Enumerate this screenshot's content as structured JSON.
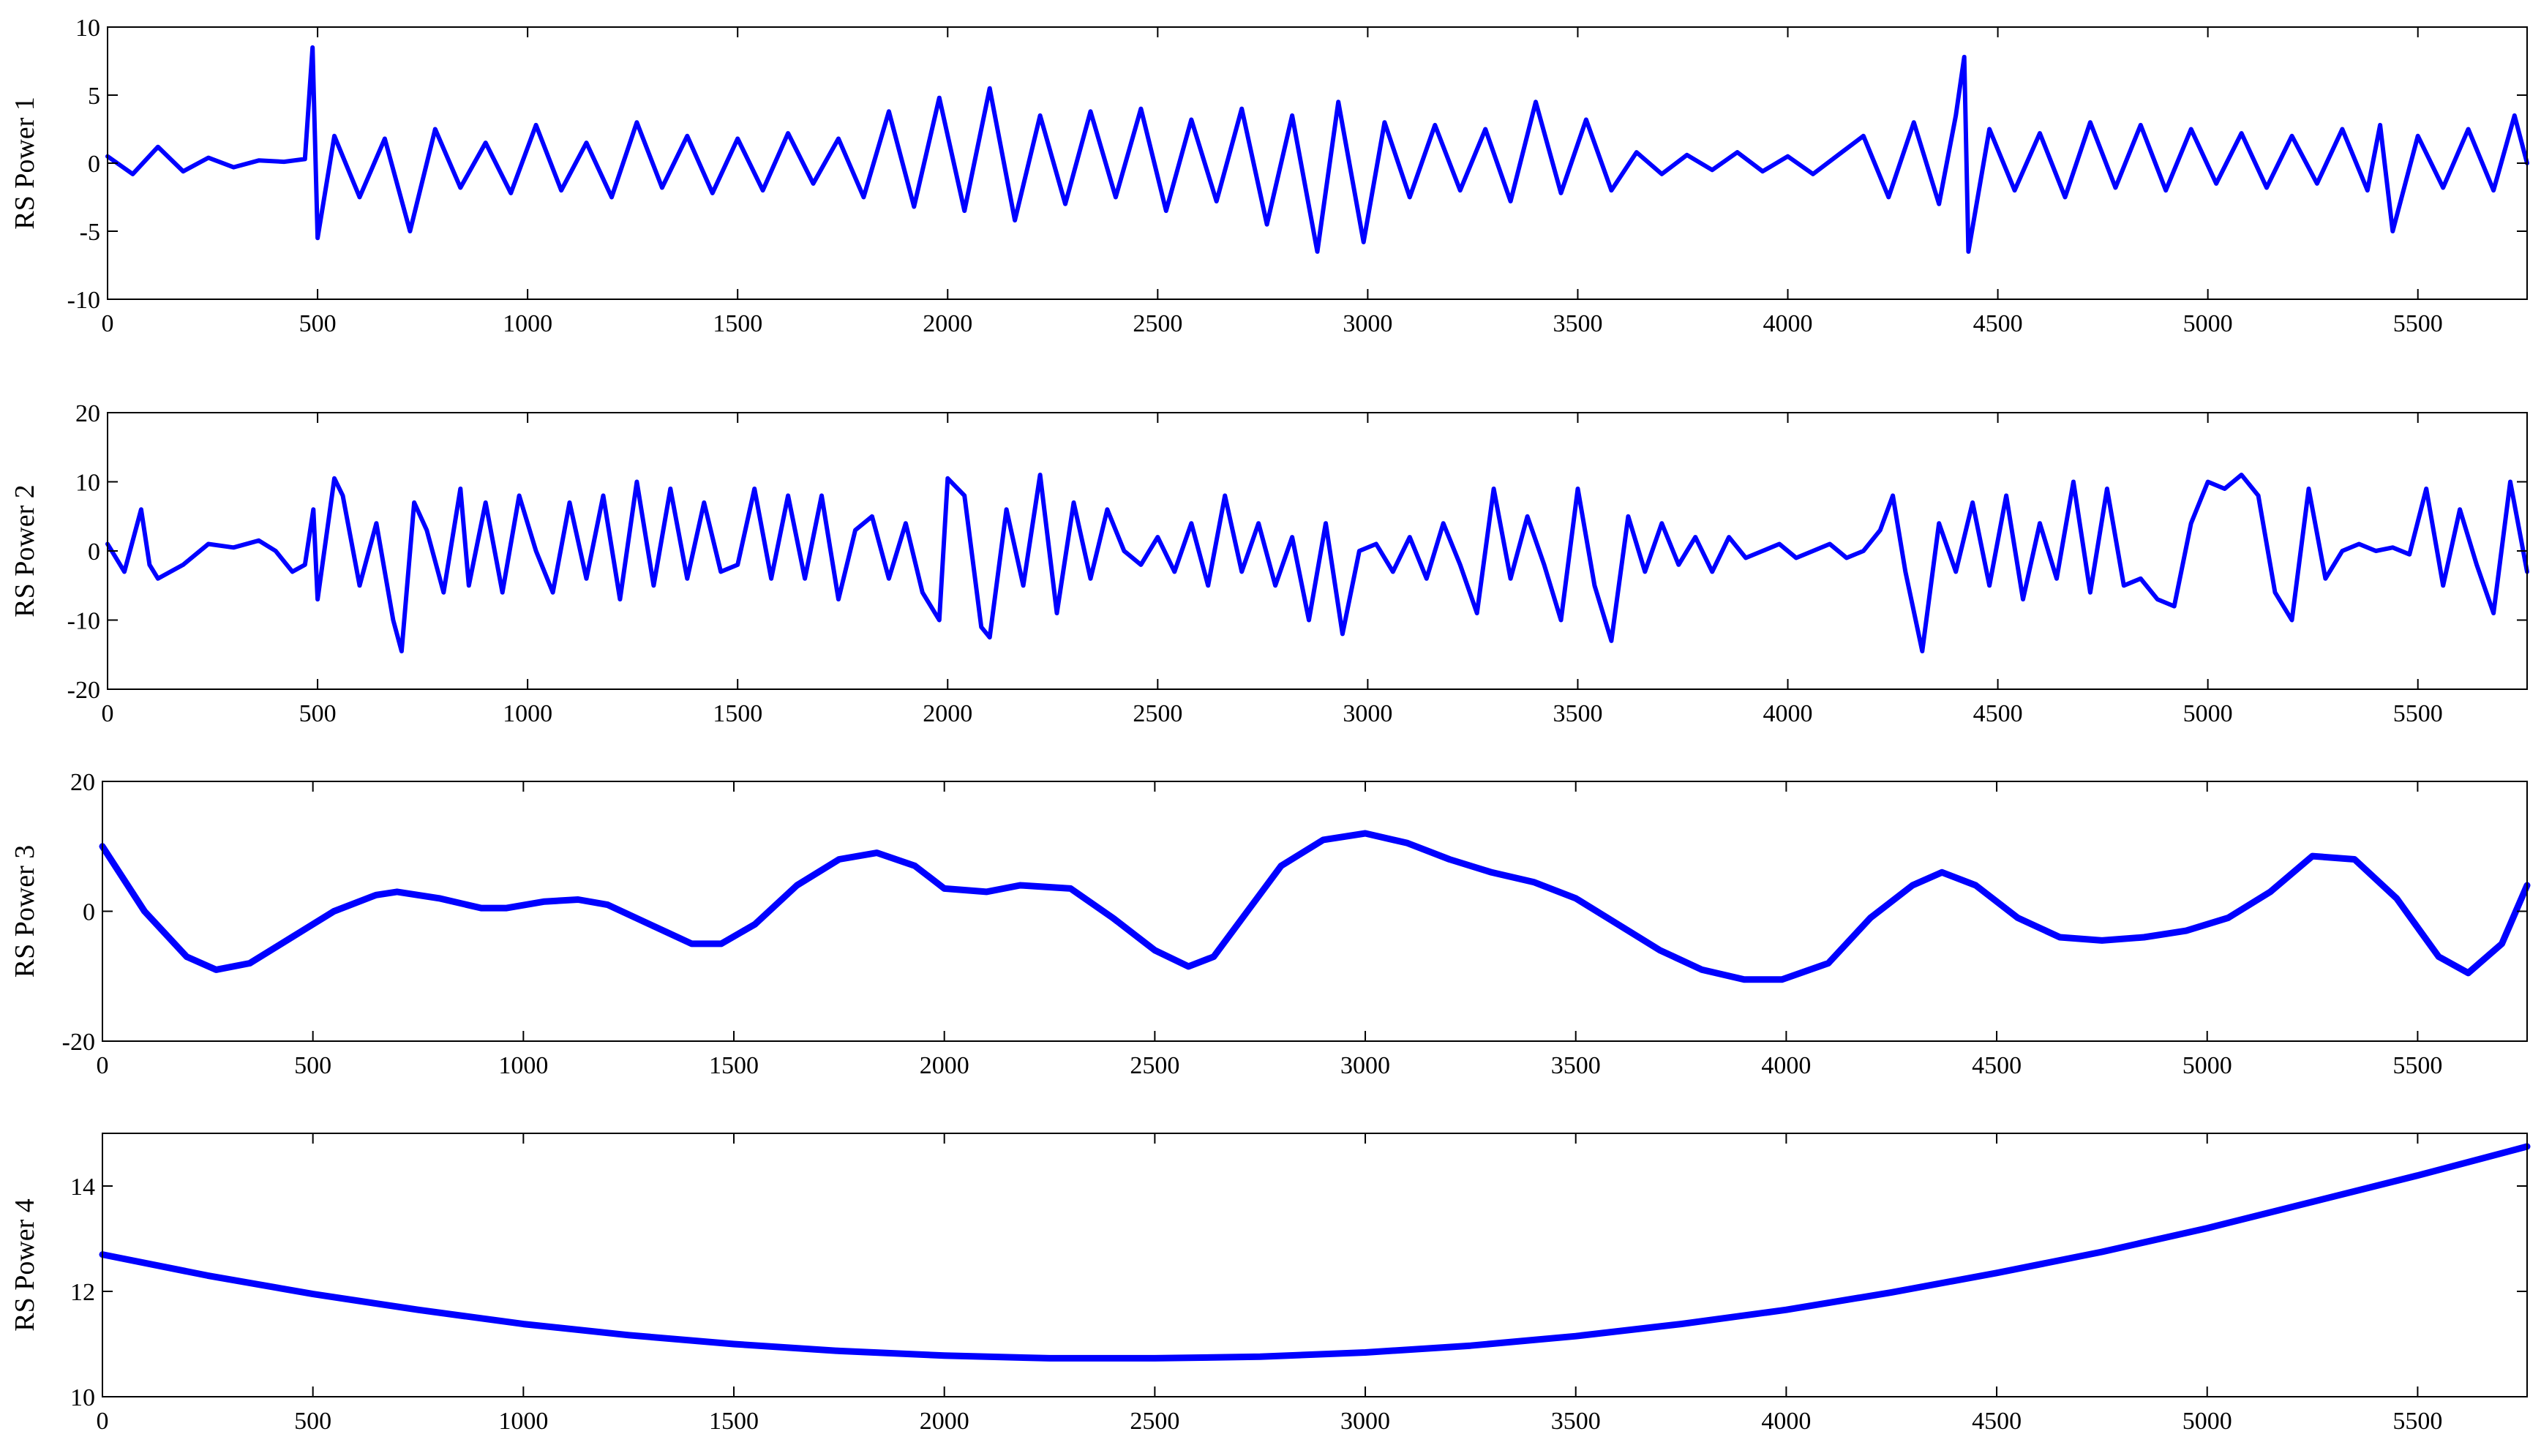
{
  "chart_data": [
    {
      "type": "line",
      "title": "",
      "xlabel": "",
      "ylabel": "RS Power 1",
      "xlim": [
        0,
        5760
      ],
      "ylim": [
        -10,
        10
      ],
      "xticks": [
        0,
        500,
        1000,
        1500,
        2000,
        2500,
        3000,
        3500,
        4000,
        4500,
        5000,
        5500
      ],
      "yticks": [
        -10,
        -5,
        0,
        5,
        10
      ],
      "grid": false,
      "color": "#0000ff",
      "series": [
        {
          "x": [
            0,
            60,
            120,
            180,
            240,
            300,
            360,
            420,
            470,
            488,
            500,
            540,
            600,
            660,
            720,
            780,
            840,
            900,
            960,
            1020,
            1080,
            1140,
            1200,
            1260,
            1320,
            1380,
            1440,
            1500,
            1560,
            1620,
            1680,
            1740,
            1800,
            1860,
            1920,
            1980,
            2040,
            2100,
            2160,
            2220,
            2280,
            2340,
            2400,
            2460,
            2520,
            2580,
            2640,
            2700,
            2760,
            2820,
            2880,
            2930,
            2990,
            3040,
            3100,
            3160,
            3220,
            3280,
            3340,
            3400,
            3460,
            3520,
            3580,
            3640,
            3700,
            3760,
            3820,
            3880,
            3940,
            4000,
            4060,
            4120,
            4180,
            4240,
            4300,
            4360,
            4400,
            4420,
            4430,
            4480,
            4540,
            4600,
            4660,
            4720,
            4780,
            4840,
            4900,
            4960,
            5020,
            5080,
            5140,
            5200,
            5260,
            5320,
            5380,
            5410,
            5440,
            5500,
            5560,
            5620,
            5680,
            5730,
            5760
          ],
          "y": [
            0.5,
            -0.8,
            1.2,
            -0.6,
            0.4,
            -0.3,
            0.2,
            0.1,
            0.3,
            8.5,
            -5.5,
            2.0,
            -2.5,
            1.8,
            -5.0,
            2.5,
            -1.8,
            1.5,
            -2.2,
            2.8,
            -2.0,
            1.5,
            -2.5,
            3.0,
            -1.8,
            2.0,
            -2.2,
            1.8,
            -2.0,
            2.2,
            -1.5,
            1.8,
            -2.5,
            3.8,
            -3.2,
            4.8,
            -3.5,
            5.5,
            -4.2,
            3.5,
            -3.0,
            3.8,
            -2.5,
            4.0,
            -3.5,
            3.2,
            -2.8,
            4.0,
            -4.5,
            3.5,
            -6.5,
            4.5,
            -5.8,
            3.0,
            -2.5,
            2.8,
            -2.0,
            2.5,
            -2.8,
            4.5,
            -2.2,
            3.2,
            -2.0,
            0.8,
            -0.8,
            0.6,
            -0.5,
            0.8,
            -0.6,
            0.5,
            -0.8,
            0.6,
            2.0,
            -2.5,
            3.0,
            -3.0,
            3.5,
            7.8,
            -6.5,
            2.5,
            -2.0,
            2.2,
            -2.5,
            3.0,
            -1.8,
            2.8,
            -2.0,
            2.5,
            -1.5,
            2.2,
            -1.8,
            2.0,
            -1.5,
            2.5,
            -2.0,
            2.8,
            -5.0,
            2.0,
            -1.8,
            2.5,
            -2.0,
            3.5,
            0.0
          ]
        }
      ]
    },
    {
      "type": "line",
      "title": "",
      "xlabel": "",
      "ylabel": "RS Power 2",
      "xlim": [
        0,
        5760
      ],
      "ylim": [
        -20,
        20
      ],
      "xticks": [
        0,
        500,
        1000,
        1500,
        2000,
        2500,
        3000,
        3500,
        4000,
        4500,
        5000,
        5500
      ],
      "yticks": [
        -20,
        -10,
        0,
        10,
        20
      ],
      "grid": false,
      "color": "#0000ff",
      "series": [
        {
          "x": [
            0,
            40,
            80,
            100,
            120,
            180,
            240,
            300,
            360,
            400,
            440,
            470,
            490,
            500,
            540,
            560,
            600,
            640,
            680,
            700,
            730,
            760,
            800,
            840,
            860,
            900,
            940,
            980,
            1020,
            1060,
            1100,
            1140,
            1180,
            1220,
            1260,
            1300,
            1340,
            1380,
            1420,
            1460,
            1500,
            1540,
            1580,
            1620,
            1660,
            1700,
            1740,
            1780,
            1820,
            1860,
            1900,
            1940,
            1980,
            2000,
            2040,
            2080,
            2100,
            2140,
            2180,
            2220,
            2260,
            2300,
            2340,
            2380,
            2420,
            2460,
            2500,
            2540,
            2580,
            2620,
            2660,
            2700,
            2740,
            2780,
            2820,
            2860,
            2900,
            2940,
            2980,
            3020,
            3060,
            3100,
            3140,
            3180,
            3220,
            3260,
            3300,
            3340,
            3380,
            3420,
            3460,
            3500,
            3540,
            3580,
            3620,
            3660,
            3700,
            3740,
            3780,
            3820,
            3860,
            3900,
            3940,
            3980,
            4020,
            4060,
            4100,
            4140,
            4180,
            4220,
            4250,
            4280,
            4320,
            4360,
            4400,
            4440,
            4480,
            4520,
            4560,
            4600,
            4640,
            4680,
            4720,
            4760,
            4800,
            4840,
            4880,
            4920,
            4960,
            5000,
            5040,
            5080,
            5120,
            5160,
            5200,
            5240,
            5280,
            5320,
            5360,
            5400,
            5440,
            5480,
            5520,
            5560,
            5600,
            5640,
            5680,
            5720,
            5760
          ],
          "y": [
            1,
            -3,
            6,
            -2,
            -4,
            -2,
            1,
            0.5,
            1.5,
            0,
            -3,
            -2,
            6,
            -7,
            10.5,
            8,
            -5,
            4,
            -10,
            -14.5,
            7,
            3,
            -6,
            9,
            -5,
            7,
            -6,
            8,
            0,
            -6,
            7,
            -4,
            8,
            -7,
            10,
            -5,
            9,
            -4,
            7,
            -3,
            -2,
            9,
            -4,
            8,
            -4,
            8,
            -7,
            3,
            5,
            -4,
            4,
            -6,
            -10,
            10.5,
            8,
            -11,
            -12.5,
            6,
            -5,
            11,
            -9,
            7,
            -4,
            6,
            0,
            -2,
            2,
            -3,
            4,
            -5,
            8,
            -3,
            4,
            -5,
            2,
            -10,
            4,
            -12,
            0,
            1,
            -3,
            2,
            -4,
            4,
            -2,
            -9,
            9,
            -4,
            5,
            -2,
            -10,
            9,
            -5,
            -13,
            5,
            -3,
            4,
            -2,
            2,
            -3,
            2,
            -1,
            0,
            1,
            -1,
            0,
            1,
            -1,
            0,
            3,
            8,
            -3,
            -14.5,
            4,
            -3,
            7,
            -5,
            8,
            -7,
            4,
            -4,
            10,
            -6,
            9,
            -5,
            -4,
            -7,
            -8,
            4,
            10,
            9,
            11,
            8,
            -6,
            -10,
            9,
            -4,
            0,
            1,
            0,
            0.5,
            -0.5,
            9,
            -5,
            6,
            -2,
            -9,
            10,
            -3
          ]
        }
      ]
    },
    {
      "type": "line",
      "title": "",
      "xlabel": "",
      "ylabel": "RS Power 3",
      "xlim": [
        0,
        5760
      ],
      "ylim": [
        -20,
        20
      ],
      "xticks": [
        0,
        500,
        1000,
        1500,
        2000,
        2500,
        3000,
        3500,
        4000,
        4500,
        5000,
        5500
      ],
      "yticks": [
        -20,
        0,
        20
      ],
      "grid": false,
      "color": "#0000ff",
      "series": [
        {
          "x": [
            0,
            100,
            200,
            270,
            350,
            450,
            550,
            650,
            700,
            800,
            900,
            960,
            1050,
            1130,
            1200,
            1300,
            1400,
            1470,
            1550,
            1650,
            1750,
            1840,
            1930,
            2000,
            2100,
            2180,
            2300,
            2400,
            2500,
            2580,
            2640,
            2720,
            2800,
            2900,
            3000,
            3100,
            3200,
            3300,
            3400,
            3500,
            3600,
            3700,
            3800,
            3900,
            3990,
            4100,
            4200,
            4300,
            4370,
            4450,
            4550,
            4650,
            4750,
            4850,
            4950,
            5050,
            5150,
            5250,
            5350,
            5450,
            5550,
            5620,
            5700,
            5760
          ],
          "y": [
            10,
            0,
            -7,
            -9,
            -8,
            -4,
            0,
            2.5,
            3,
            2,
            0.5,
            0.5,
            1.5,
            1.8,
            1,
            -2,
            -5,
            -5,
            -2,
            4,
            8,
            9,
            7,
            3.5,
            3,
            4,
            3.5,
            -1,
            -6,
            -8.5,
            -7,
            0,
            7,
            11,
            12,
            10.5,
            8,
            6,
            4.5,
            2,
            -2,
            -6,
            -9,
            -10.5,
            -10.5,
            -8,
            -1,
            4,
            6,
            4,
            -1,
            -4,
            -4.5,
            -4,
            -3,
            -1,
            3,
            8.5,
            8,
            2,
            -7,
            -9.5,
            -5,
            4
          ]
        }
      ]
    },
    {
      "type": "line",
      "title": "",
      "xlabel": "",
      "ylabel": "RS Power 4",
      "xlim": [
        0,
        5760
      ],
      "ylim": [
        10,
        15
      ],
      "xticks": [
        0,
        500,
        1000,
        1500,
        2000,
        2500,
        3000,
        3500,
        4000,
        4500,
        5000,
        5500
      ],
      "yticks": [
        10,
        12,
        14
      ],
      "grid": false,
      "color": "#0000ff",
      "series": [
        {
          "x": [
            0,
            250,
            500,
            750,
            1000,
            1250,
            1500,
            1750,
            2000,
            2250,
            2500,
            2750,
            3000,
            3250,
            3500,
            3750,
            4000,
            4250,
            4500,
            4750,
            5000,
            5250,
            5500,
            5760
          ],
          "y": [
            12.7,
            12.3,
            11.95,
            11.65,
            11.38,
            11.17,
            11.0,
            10.87,
            10.78,
            10.73,
            10.73,
            10.76,
            10.84,
            10.97,
            11.15,
            11.38,
            11.65,
            11.98,
            12.35,
            12.75,
            13.2,
            13.7,
            14.2,
            14.75
          ]
        }
      ]
    }
  ]
}
